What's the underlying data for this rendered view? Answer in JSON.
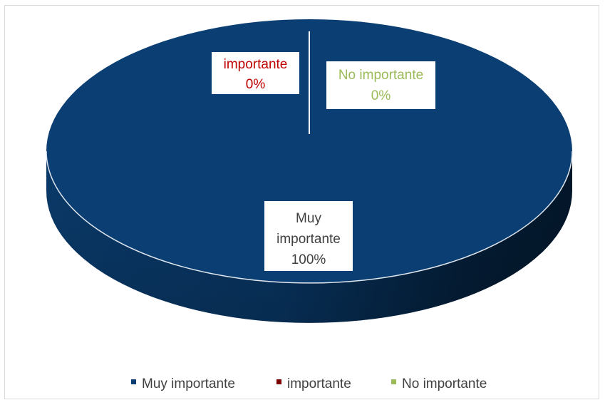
{
  "chart_data": {
    "type": "pie",
    "style": "3d",
    "title": "",
    "categories": [
      "Muy importante",
      "importante",
      "No importante"
    ],
    "values": [
      100,
      0,
      0
    ],
    "percent_labels": [
      "100%",
      "0%",
      "0%"
    ],
    "colors": [
      "#0b3f73",
      "#7b0000",
      "#9bbb59"
    ],
    "label_text_colors": [
      "#404040",
      "#c00000",
      "#9bbb59"
    ],
    "legend": {
      "position": "bottom",
      "entries": [
        "Muy importante",
        "importante",
        "No importante"
      ]
    }
  }
}
